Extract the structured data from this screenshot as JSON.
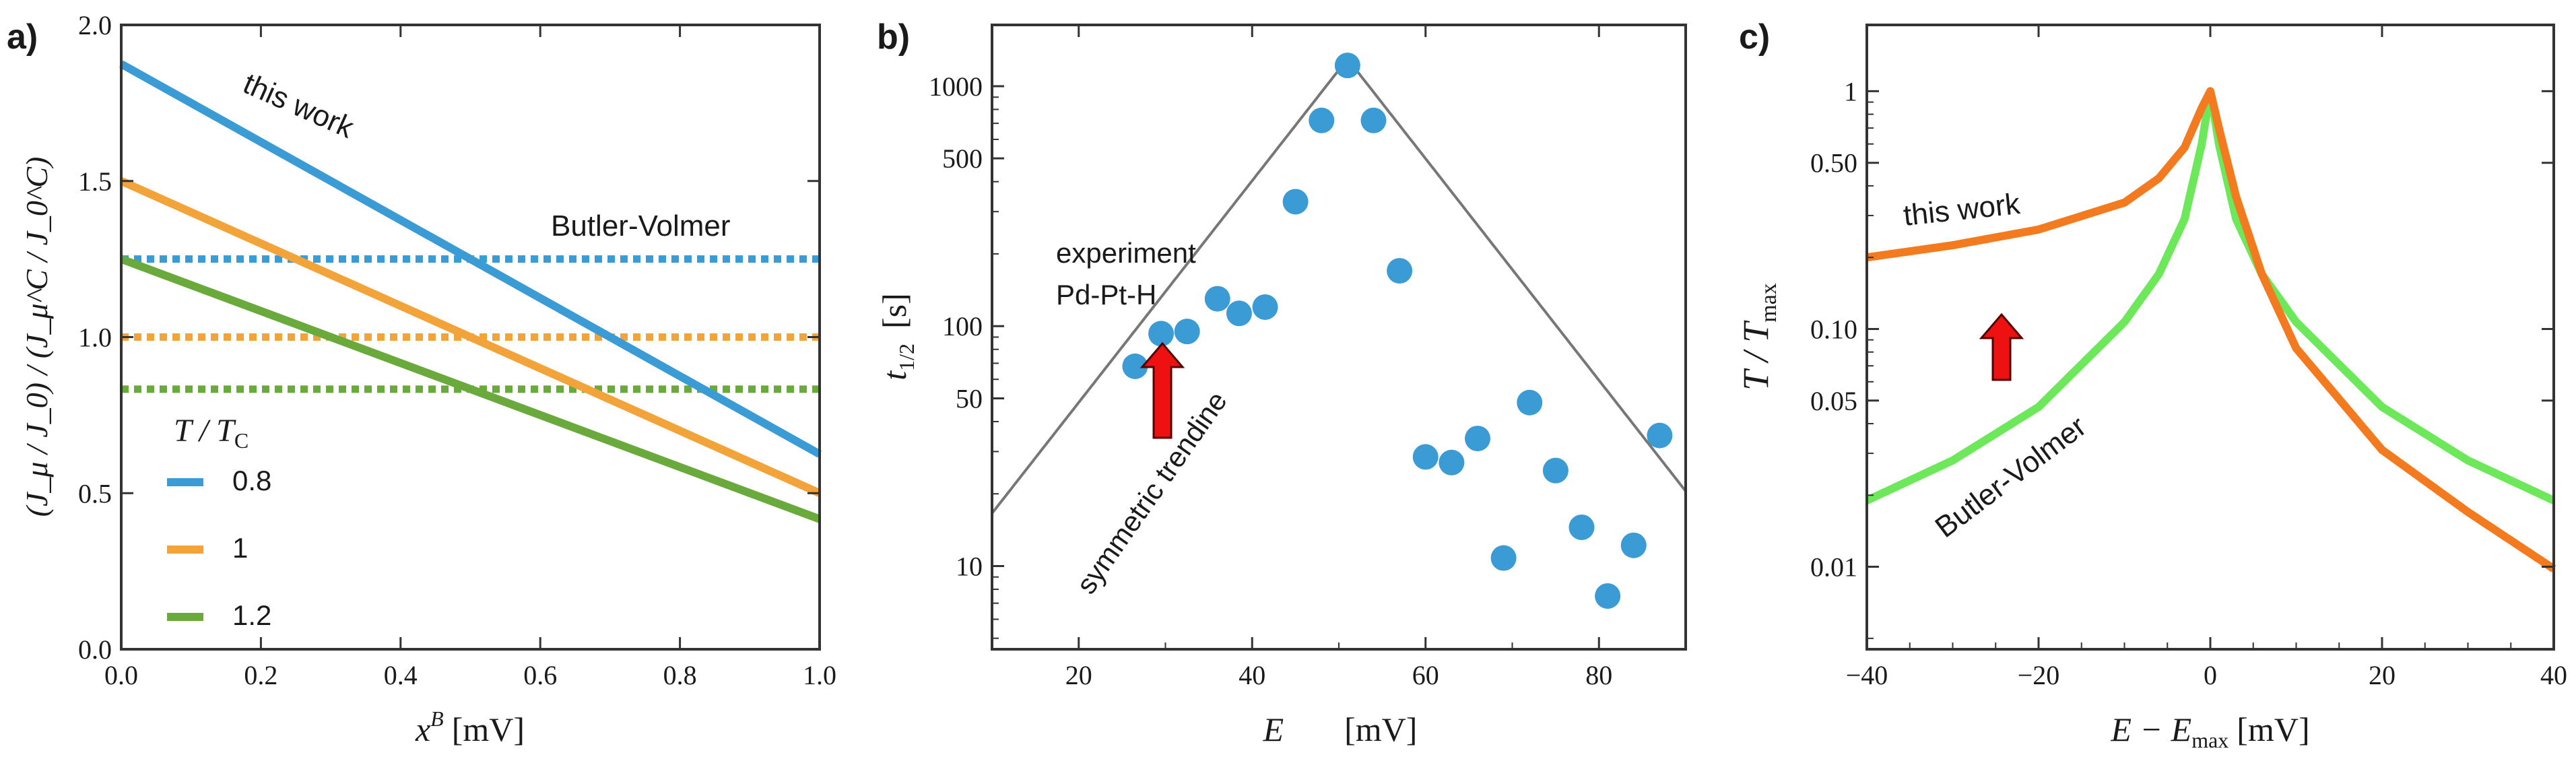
{
  "chart_data": [
    {
      "panel": "a)",
      "type": "line",
      "xlabel": "x",
      "xlabel_sup": "B",
      "xlabel_unit": "[mV]",
      "ylabel": "(J_μ / J_0) / (J_μ^C / J_0^C)",
      "xlim": [
        0,
        1
      ],
      "ylim": [
        0,
        2
      ],
      "xticks": [
        "0.0",
        "0.2",
        "0.4",
        "0.6",
        "0.8",
        "1.0"
      ],
      "yticks": [
        "0.0",
        "0.5",
        "1.0",
        "1.5",
        "2.0"
      ],
      "legend_title": "T / T",
      "legend_title_sub": "C",
      "annotations": {
        "this_work": "this work",
        "butler_volmer": "Butler-Volmer"
      },
      "series": [
        {
          "name": "0.8",
          "color": "#3b9bd4",
          "this_work": [
            [
              0,
              1.875
            ],
            [
              1,
              0.625
            ]
          ],
          "butler_volmer": 1.25
        },
        {
          "name": "1",
          "color": "#f2a33a",
          "this_work": [
            [
              0,
              1.5
            ],
            [
              1,
              0.5
            ]
          ],
          "butler_volmer": 1.0
        },
        {
          "name": "1.2",
          "color": "#6aaa3c",
          "this_work": [
            [
              0,
              1.25
            ],
            [
              1,
              0.417
            ]
          ],
          "butler_volmer": 0.833
        }
      ]
    },
    {
      "panel": "b)",
      "type": "scatter",
      "xlabel": "E",
      "xlabel_unit": "[mV]",
      "ylabel": "t",
      "ylabel_sub": "1/2",
      "ylabel_unit": "[s]",
      "yscale": "log",
      "xlim": [
        10,
        90
      ],
      "ylim": [
        4.5,
        1800
      ],
      "xticks": [
        "20",
        "40",
        "60",
        "80"
      ],
      "yticks": [
        "10",
        "50",
        "100",
        "500",
        "1000"
      ],
      "point_color": "#3b9bd4",
      "annotations": {
        "experiment": "experiment",
        "material": "Pd-Pt-H",
        "trendline": "symmetric trendine"
      },
      "points": [
        [
          26.5,
          68
        ],
        [
          29.5,
          93
        ],
        [
          32.5,
          95
        ],
        [
          36,
          130
        ],
        [
          38.5,
          113
        ],
        [
          41.5,
          120
        ],
        [
          45,
          330
        ],
        [
          48,
          720
        ],
        [
          51,
          1220
        ],
        [
          54,
          720
        ],
        [
          57,
          170
        ],
        [
          60,
          28.5
        ],
        [
          63,
          27
        ],
        [
          66,
          34
        ],
        [
          69,
          10.8
        ],
        [
          72,
          48
        ],
        [
          75,
          25
        ],
        [
          78,
          14.5
        ],
        [
          81,
          7.5
        ],
        [
          84,
          12.2
        ],
        [
          87,
          35
        ]
      ],
      "trendline": {
        "center": 51,
        "peak": 1300,
        "decay_mV": 9.4
      }
    },
    {
      "panel": "c)",
      "type": "line",
      "xlabel": "E − E",
      "xlabel_sub": "max",
      "xlabel_unit": "[mV]",
      "ylabel": "T / T",
      "ylabel_sub": "max",
      "yscale": "log",
      "xlim": [
        -40,
        40
      ],
      "ylim": [
        0.0045,
        1.9
      ],
      "xticks": [
        "−40",
        "−20",
        "0",
        "20",
        "40"
      ],
      "yticks": [
        "0.01",
        "0.05",
        "0.10",
        "0.50",
        "1"
      ],
      "annotations": {
        "this_work": "this work",
        "butler_volmer": "Butler-Volmer"
      },
      "series": [
        {
          "name": "this work",
          "color": "#f47a1f",
          "x": [
            -40,
            -30,
            -20,
            -10,
            -6,
            -3,
            -1,
            0,
            1,
            3,
            6,
            10,
            20,
            30,
            40
          ],
          "y": [
            0.2,
            0.225,
            0.262,
            0.34,
            0.43,
            0.58,
            0.85,
            1.0,
            0.7,
            0.36,
            0.17,
            0.083,
            0.031,
            0.017,
            0.0098
          ]
        },
        {
          "name": "Butler-Volmer",
          "color": "#6ce85a",
          "x": [
            -40,
            -30,
            -20,
            -10,
            -6,
            -3,
            -1,
            0,
            1,
            3,
            6,
            10,
            20,
            30,
            40
          ],
          "y": [
            0.019,
            0.028,
            0.047,
            0.107,
            0.17,
            0.29,
            0.6,
            1.0,
            0.6,
            0.29,
            0.17,
            0.107,
            0.047,
            0.028,
            0.019
          ]
        }
      ]
    }
  ]
}
